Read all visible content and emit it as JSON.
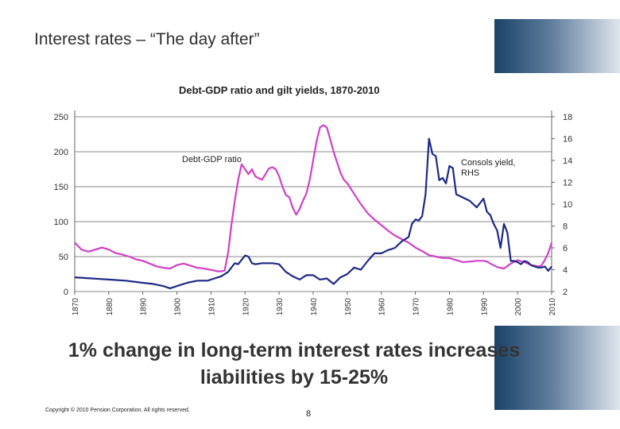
{
  "slide": {
    "title": "Interest rates – “The day after”",
    "headline_line1": "1% change in long-term interest rates increases",
    "headline_line2": "liabilities by 15-25%",
    "copyright": "Copyright © 2010 Pension Corporation. All rights reserved.",
    "page_number": "8"
  },
  "colors": {
    "debt_series": "#d040c8",
    "yield_series": "#1c2a86",
    "banner_dark": "#1b4268",
    "banner_light": "#dfe6ee"
  },
  "chart_data": {
    "type": "line",
    "title": "Debt-GDP ratio and gilt yields, 1870-2010",
    "x_range": [
      1870,
      2010
    ],
    "x_ticks": [
      "1870",
      "1880",
      "1890",
      "1900",
      "1910",
      "1920",
      "1930",
      "1940",
      "1950",
      "1960",
      "1970",
      "1980",
      "1990",
      "2000",
      "2010"
    ],
    "y_left": {
      "range": [
        0,
        250
      ],
      "ticks": [
        "0",
        "50",
        "100",
        "150",
        "200",
        "250"
      ]
    },
    "y_right": {
      "range": [
        2,
        18
      ],
      "ticks": [
        "2",
        "4",
        "6",
        "8",
        "10",
        "12",
        "14",
        "16",
        "18"
      ]
    },
    "grid": true,
    "series": [
      {
        "name": "Debt-GDP ratio",
        "axis": "left",
        "x": [
          1870,
          1872,
          1874,
          1876,
          1878,
          1880,
          1882,
          1884,
          1886,
          1888,
          1890,
          1892,
          1894,
          1896,
          1898,
          1900,
          1902,
          1904,
          1906,
          1908,
          1910,
          1912,
          1913,
          1914,
          1915,
          1916,
          1917,
          1918,
          1919,
          1920,
          1921,
          1922,
          1923,
          1924,
          1925,
          1926,
          1927,
          1928,
          1929,
          1930,
          1931,
          1932,
          1933,
          1934,
          1935,
          1936,
          1937,
          1938,
          1939,
          1940,
          1941,
          1942,
          1943,
          1944,
          1945,
          1946,
          1947,
          1948,
          1949,
          1950,
          1952,
          1954,
          1956,
          1958,
          1960,
          1962,
          1964,
          1966,
          1968,
          1970,
          1972,
          1974,
          1976,
          1978,
          1980,
          1982,
          1984,
          1986,
          1988,
          1990,
          1991,
          1992,
          1994,
          1996,
          1998,
          2000,
          2002,
          2004,
          2006,
          2007,
          2008,
          2009,
          2010
        ],
        "values": [
          70,
          60,
          57,
          60,
          63,
          60,
          55,
          53,
          50,
          46,
          44,
          40,
          36,
          34,
          33,
          38,
          40,
          37,
          34,
          33,
          31,
          29,
          29,
          30,
          55,
          95,
          130,
          160,
          182,
          175,
          168,
          175,
          165,
          162,
          160,
          168,
          176,
          178,
          175,
          165,
          150,
          138,
          135,
          120,
          110,
          118,
          130,
          140,
          160,
          188,
          215,
          235,
          238,
          235,
          218,
          200,
          185,
          170,
          160,
          155,
          140,
          125,
          112,
          103,
          95,
          87,
          80,
          75,
          70,
          63,
          58,
          52,
          50,
          48,
          48,
          45,
          42,
          43,
          44,
          44,
          43,
          40,
          35,
          33,
          40,
          45,
          42,
          38,
          36,
          37,
          45,
          55,
          70
        ]
      },
      {
        "name": "Consols yield, RHS",
        "axis": "right",
        "x": [
          1870,
          1875,
          1880,
          1885,
          1890,
          1893,
          1896,
          1898,
          1900,
          1903,
          1906,
          1909,
          1911,
          1913,
          1915,
          1916,
          1917,
          1918,
          1919,
          1920,
          1921,
          1922,
          1923,
          1925,
          1928,
          1930,
          1932,
          1934,
          1936,
          1938,
          1940,
          1942,
          1944,
          1946,
          1948,
          1950,
          1952,
          1954,
          1956,
          1958,
          1960,
          1962,
          1964,
          1966,
          1968,
          1969,
          1970,
          1971,
          1972,
          1973,
          1974,
          1975,
          1976,
          1977,
          1978,
          1979,
          1980,
          1981,
          1982,
          1984,
          1986,
          1988,
          1989,
          1990,
          1991,
          1992,
          1993,
          1994,
          1995,
          1996,
          1997,
          1998,
          1999,
          2000,
          2001,
          2002,
          2003,
          2004,
          2005,
          2006,
          2007,
          2008,
          2009,
          2010
        ],
        "values": [
          3.3,
          3.2,
          3.1,
          3.0,
          2.8,
          2.7,
          2.5,
          2.3,
          2.5,
          2.8,
          3.0,
          3.0,
          3.2,
          3.4,
          3.8,
          4.2,
          4.6,
          4.5,
          4.9,
          5.3,
          5.2,
          4.6,
          4.5,
          4.6,
          4.6,
          4.5,
          3.8,
          3.4,
          3.1,
          3.5,
          3.5,
          3.1,
          3.2,
          2.7,
          3.3,
          3.6,
          4.2,
          4.0,
          4.8,
          5.5,
          5.5,
          5.8,
          6.0,
          6.6,
          7.0,
          8.2,
          8.6,
          8.5,
          8.9,
          10.9,
          16.0,
          14.6,
          14.4,
          12.2,
          12.4,
          11.9,
          13.5,
          13.3,
          10.9,
          10.6,
          10.3,
          9.7,
          10.1,
          10.5,
          9.3,
          9.0,
          8.2,
          7.6,
          6.0,
          8.2,
          7.4,
          4.8,
          4.8,
          4.7,
          4.5,
          4.8,
          4.7,
          4.4,
          4.3,
          4.2,
          4.2,
          4.3,
          3.9,
          4.3
        ]
      }
    ],
    "annotations": {
      "debt_label": "Debt-GDP ratio",
      "yield_label_line1": "Consols yield,",
      "yield_label_line2": "RHS"
    }
  }
}
